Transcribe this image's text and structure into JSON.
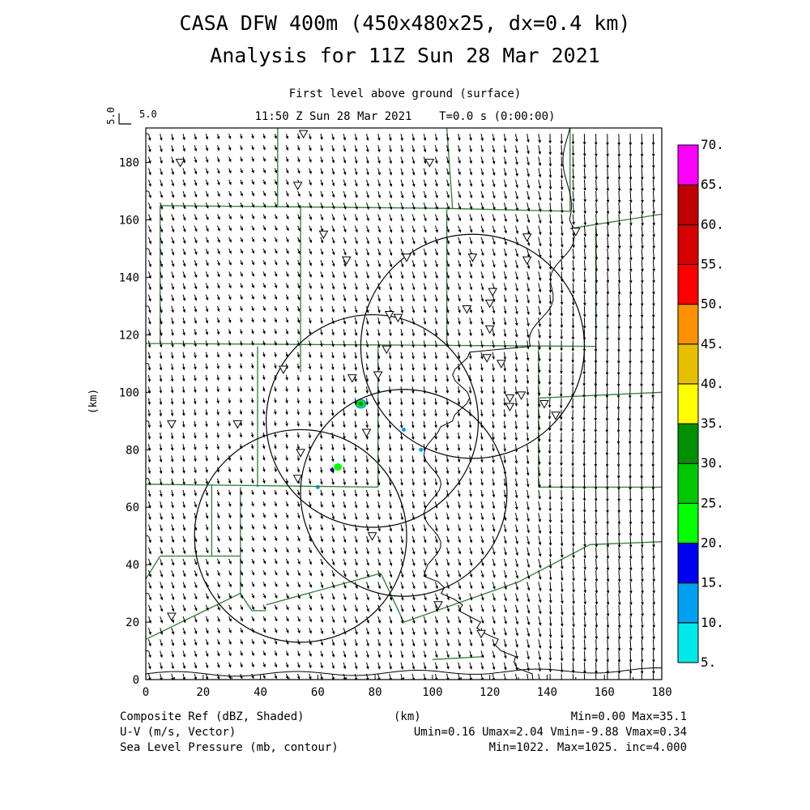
{
  "header": {
    "title_line1": "CASA DFW 400m (450x480x25, dx=0.4 km)",
    "title_line2": "Analysis for 11Z Sun 28 Mar 2021",
    "subtitle_line1": "First level above ground (surface)",
    "subtitle_line2": "11:50 Z Sun 28 Mar 2021    T=0.0 s (0:00:00)",
    "vector_scale_label": "5.0",
    "vector_scale_label_vertical": "5.0"
  },
  "footer": {
    "field1": "Composite Ref (dBZ, Shaded)",
    "field1_stats": "Min=0.00 Max=35.1",
    "field2": "U-V (m/s, Vector)",
    "field2_stats": "Umin=0.16 Umax=2.04 Vmin=-9.88 Vmax=0.34",
    "field3": "Sea Level Pressure (mb, contour)",
    "field3_stats": "Min=1022. Max=1025. inc=4.000",
    "xunit": "(km)"
  },
  "map_data": {
    "y_axis_label": "(km)",
    "x_range": [
      0,
      180
    ],
    "y_range": [
      0,
      192
    ],
    "x_ticks": [
      "0",
      "20",
      "40",
      "60",
      "80",
      "100",
      "120",
      "140",
      "160",
      "180"
    ],
    "x_tick_values": [
      0,
      20,
      40,
      60,
      80,
      100,
      120,
      140,
      160,
      180
    ],
    "y_ticks": [
      "0",
      "20",
      "40",
      "60",
      "80",
      "100",
      "120",
      "140",
      "160",
      "180"
    ],
    "y_tick_values": [
      0,
      20,
      40,
      60,
      80,
      100,
      120,
      140,
      160,
      180
    ],
    "colorbar": {
      "labels": [
        "5.",
        "10.",
        "15.",
        "20.",
        "25.",
        "30.",
        "35.",
        "40.",
        "45.",
        "50.",
        "55.",
        "60.",
        "65.",
        "70."
      ],
      "colors": [
        "#00e8e8",
        "#00a0f0",
        "#0000f0",
        "#00ff00",
        "#00c800",
        "#009000",
        "#ffff00",
        "#e6c000",
        "#ff9000",
        "#ff0000",
        "#d60000",
        "#c00000",
        "#ff00ff"
      ]
    },
    "radar_circles": [
      {
        "cx": 79,
        "cy": 90,
        "r": 37
      },
      {
        "cx": 114,
        "cy": 116,
        "r": 39
      },
      {
        "cx": 54,
        "cy": 50,
        "r": 37
      },
      {
        "cx": 90,
        "cy": 65,
        "r": 36
      }
    ],
    "station_markers": [
      [
        55,
        190
      ],
      [
        12,
        180
      ],
      [
        99,
        180
      ],
      [
        53,
        172
      ],
      [
        62,
        155
      ],
      [
        70,
        146
      ],
      [
        91,
        147
      ],
      [
        114,
        147
      ],
      [
        133,
        154
      ],
      [
        133,
        146
      ],
      [
        121,
        135
      ],
      [
        120,
        131
      ],
      [
        112,
        129
      ],
      [
        85,
        127
      ],
      [
        88,
        126
      ],
      [
        120,
        122
      ],
      [
        84,
        115
      ],
      [
        119,
        112
      ],
      [
        124,
        110
      ],
      [
        48,
        108
      ],
      [
        72,
        105
      ],
      [
        81,
        106
      ],
      [
        127,
        98
      ],
      [
        131,
        99
      ],
      [
        127,
        95
      ],
      [
        139,
        96
      ],
      [
        143,
        92
      ],
      [
        9,
        89
      ],
      [
        32,
        89
      ],
      [
        77,
        86
      ],
      [
        54,
        79
      ],
      [
        53,
        70
      ],
      [
        79,
        50
      ],
      [
        102,
        26
      ],
      [
        9,
        22
      ],
      [
        117,
        16
      ],
      [
        150,
        156
      ]
    ],
    "echoes": [
      {
        "x": 75,
        "y": 96,
        "dbz": 30
      },
      {
        "x": 67,
        "y": 74,
        "dbz": 20
      },
      {
        "x": 65,
        "y": 73,
        "dbz": 15
      },
      {
        "x": 90,
        "y": 87,
        "dbz": 10
      },
      {
        "x": 96,
        "y": 80,
        "dbz": 10
      },
      {
        "x": 60,
        "y": 67,
        "dbz": 10
      }
    ],
    "county_lines": [
      [
        [
          46,
          192
        ],
        [
          46,
          165
        ]
      ],
      [
        [
          5,
          165
        ],
        [
          107,
          164
        ]
      ],
      [
        [
          107,
          164
        ],
        [
          105,
          192
        ]
      ],
      [
        [
          105,
          164
        ],
        [
          148,
          163
        ]
      ],
      [
        [
          148,
          163
        ],
        [
          148,
          192
        ]
      ],
      [
        [
          148,
          157
        ],
        [
          180,
          162
        ]
      ],
      [
        [
          5,
          165
        ],
        [
          5,
          117
        ]
      ],
      [
        [
          54,
          165
        ],
        [
          54,
          117
        ]
      ],
      [
        [
          0,
          117
        ],
        [
          157,
          116
        ]
      ],
      [
        [
          157,
          116
        ],
        [
          157,
          157
        ]
      ],
      [
        [
          105,
          164
        ],
        [
          105,
          116
        ]
      ],
      [
        [
          157,
          116
        ],
        [
          157,
          98
        ]
      ],
      [
        [
          137,
          98
        ],
        [
          180,
          100
        ]
      ],
      [
        [
          137,
          116
        ],
        [
          137,
          67
        ]
      ],
      [
        [
          137,
          67
        ],
        [
          180,
          67
        ]
      ],
      [
        [
          39,
          116
        ],
        [
          39,
          67
        ]
      ],
      [
        [
          0,
          68
        ],
        [
          81,
          67
        ]
      ],
      [
        [
          81,
          67
        ],
        [
          81,
          116
        ]
      ],
      [
        [
          33,
          67
        ],
        [
          33,
          43
        ]
      ],
      [
        [
          0,
          35
        ],
        [
          5,
          43
        ]
      ],
      [
        [
          5,
          43
        ],
        [
          33,
          43
        ]
      ],
      [
        [
          33,
          30
        ],
        [
          33,
          43
        ]
      ],
      [
        [
          33,
          30
        ],
        [
          37,
          24
        ]
      ],
      [
        [
          37,
          24
        ],
        [
          42,
          24
        ]
      ],
      [
        [
          42,
          26
        ],
        [
          82,
          37
        ]
      ],
      [
        [
          82,
          37
        ],
        [
          90,
          20
        ]
      ],
      [
        [
          90,
          20
        ],
        [
          130,
          34
        ]
      ],
      [
        [
          130,
          34
        ],
        [
          155,
          47
        ]
      ],
      [
        [
          155,
          47
        ],
        [
          180,
          48
        ]
      ],
      [
        [
          0,
          14
        ],
        [
          33,
          30
        ]
      ],
      [
        [
          23,
          68
        ],
        [
          23,
          43
        ]
      ],
      [
        [
          54,
          117
        ],
        [
          54,
          107
        ]
      ],
      [
        [
          100,
          7
        ],
        [
          118,
          8
        ]
      ]
    ],
    "county_fill_color": "#2e7d32"
  }
}
